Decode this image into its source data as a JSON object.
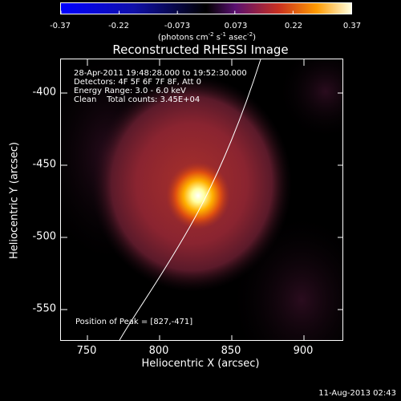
{
  "colorbar": {
    "ticks": [
      "-0.37",
      "-0.22",
      "-0.073",
      "0.073",
      "0.22",
      "0.37"
    ],
    "units_main": "(photons cm",
    "units_sup1": "-2",
    "units_mid1": " s",
    "units_sup2": "-1",
    "units_mid2": " asec",
    "units_sup3": "-2",
    "units_end": ")"
  },
  "title": "Reconstructed RHESSI Image",
  "info": {
    "line1": "28-Apr-2011 19:48:28.000 to 19:52:30.000",
    "line2": "Detectors: 4F 5F 6F 7F 8F, Att 0",
    "line3": "Energy Range: 3.0 - 6.0 keV",
    "line4": "Clean    Total counts: 3.45E+04"
  },
  "peak_label": "Position of Peak = [827,-471]",
  "axes": {
    "xlabel": "Heliocentric X (arcsec)",
    "ylabel": "Heliocentric Y (arcsec)",
    "xticks": [
      "750",
      "800",
      "850",
      "900"
    ],
    "yticks": [
      "-400",
      "-450",
      "-500",
      "-550"
    ],
    "x_range": [
      731,
      928
    ],
    "y_range": [
      -571,
      -374
    ]
  },
  "footer": "11-Aug-2013 02:43",
  "colors": {
    "limb": "#ffffff",
    "background": "#000000"
  }
}
